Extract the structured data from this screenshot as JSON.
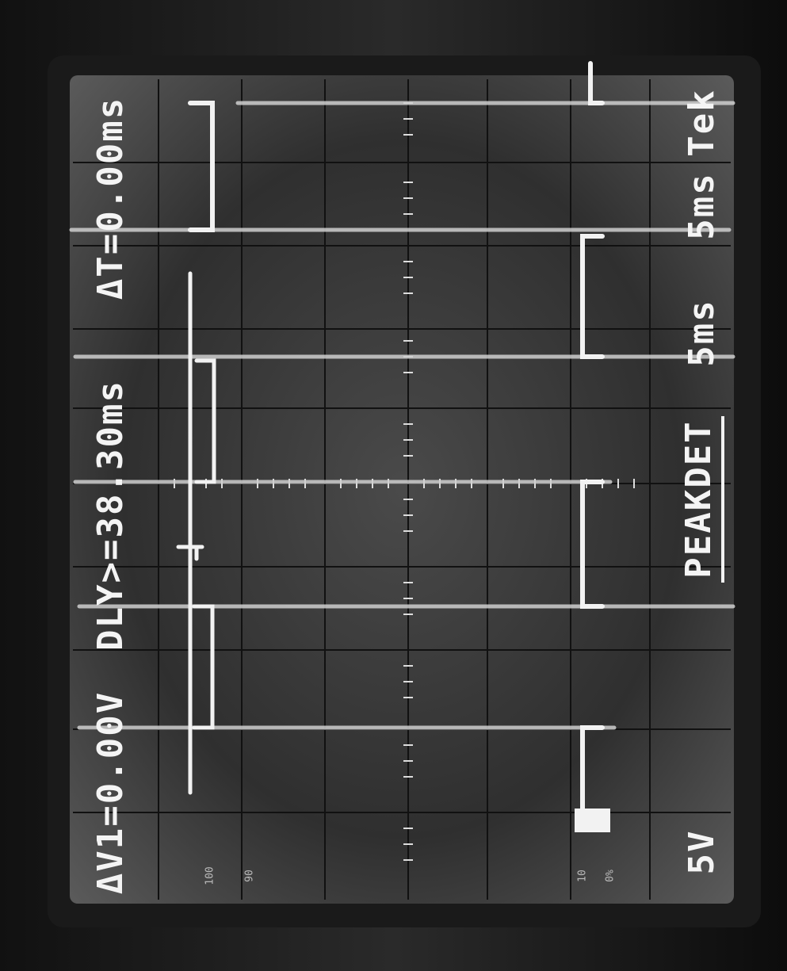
{
  "readouts": {
    "delta_v": "ΔV1=0.00V",
    "delay": "DLY>=38.30ms",
    "delta_t": "ΔT=0.00ms"
  },
  "brand": "Tek",
  "timebase_main": "5ms",
  "timebase_delayed": "5ms",
  "mode": "PEAKDET",
  "volts_per_div": "5V",
  "graticule_labels": [
    "100",
    "90",
    "10",
    "0%"
  ]
}
